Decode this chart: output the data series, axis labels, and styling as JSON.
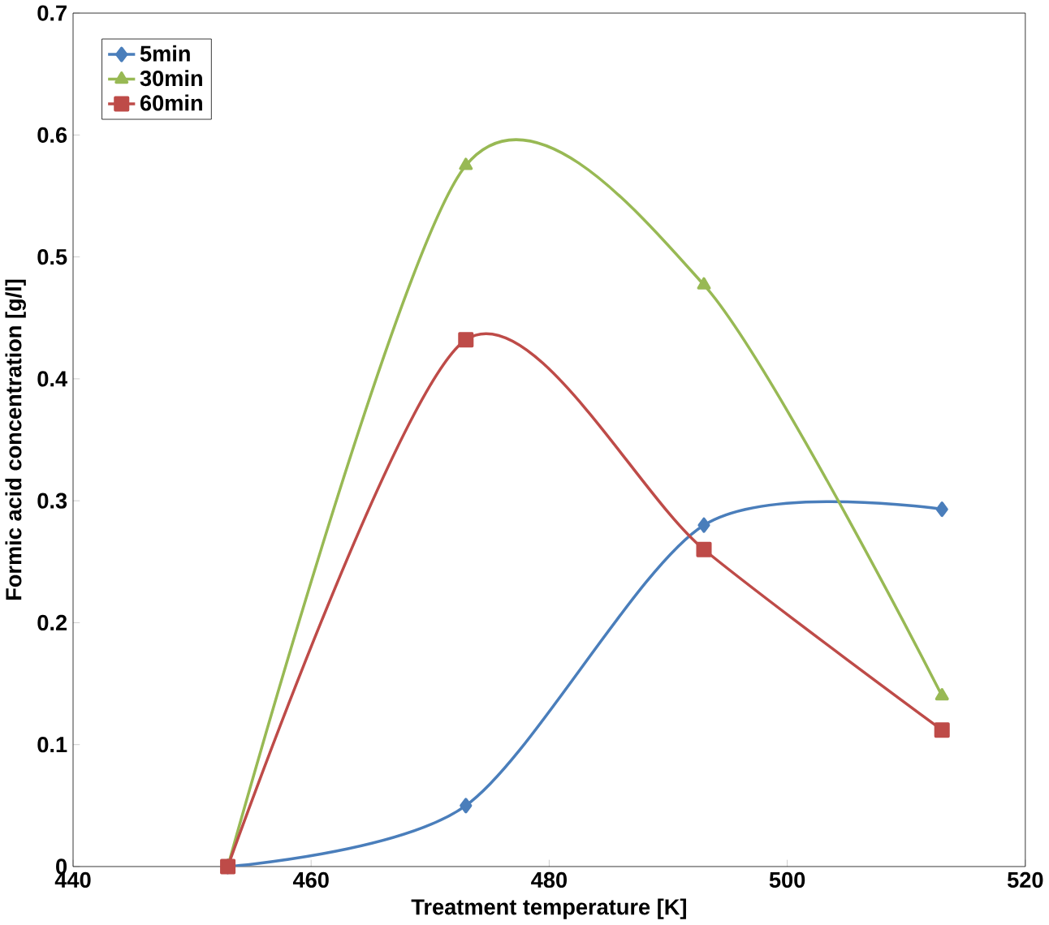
{
  "chart_data": {
    "type": "line",
    "xlabel": "Treatment temperature [K]",
    "ylabel": "Formic acid concentration [g/l]",
    "x": [
      453,
      473,
      493,
      513
    ],
    "series": [
      {
        "name": "5min",
        "color": "#4a7ebb",
        "marker": "diamond",
        "values": [
          0,
          0.05,
          0.28,
          0.293
        ]
      },
      {
        "name": "30min",
        "color": "#98b954",
        "marker": "triangle",
        "values": [
          0,
          0.575,
          0.477,
          0.14
        ]
      },
      {
        "name": "60min",
        "color": "#be4b48",
        "marker": "square",
        "values": [
          0,
          0.432,
          0.26,
          0.112
        ]
      }
    ],
    "xlim": [
      440,
      520
    ],
    "xticks": [
      440,
      460,
      480,
      500,
      520
    ],
    "ylim": [
      0,
      0.7
    ],
    "yticks": [
      0,
      0.1,
      0.2,
      0.3,
      0.4,
      0.5,
      0.6,
      0.7
    ],
    "grid": false,
    "legend": "top left",
    "line_style": "solid"
  }
}
